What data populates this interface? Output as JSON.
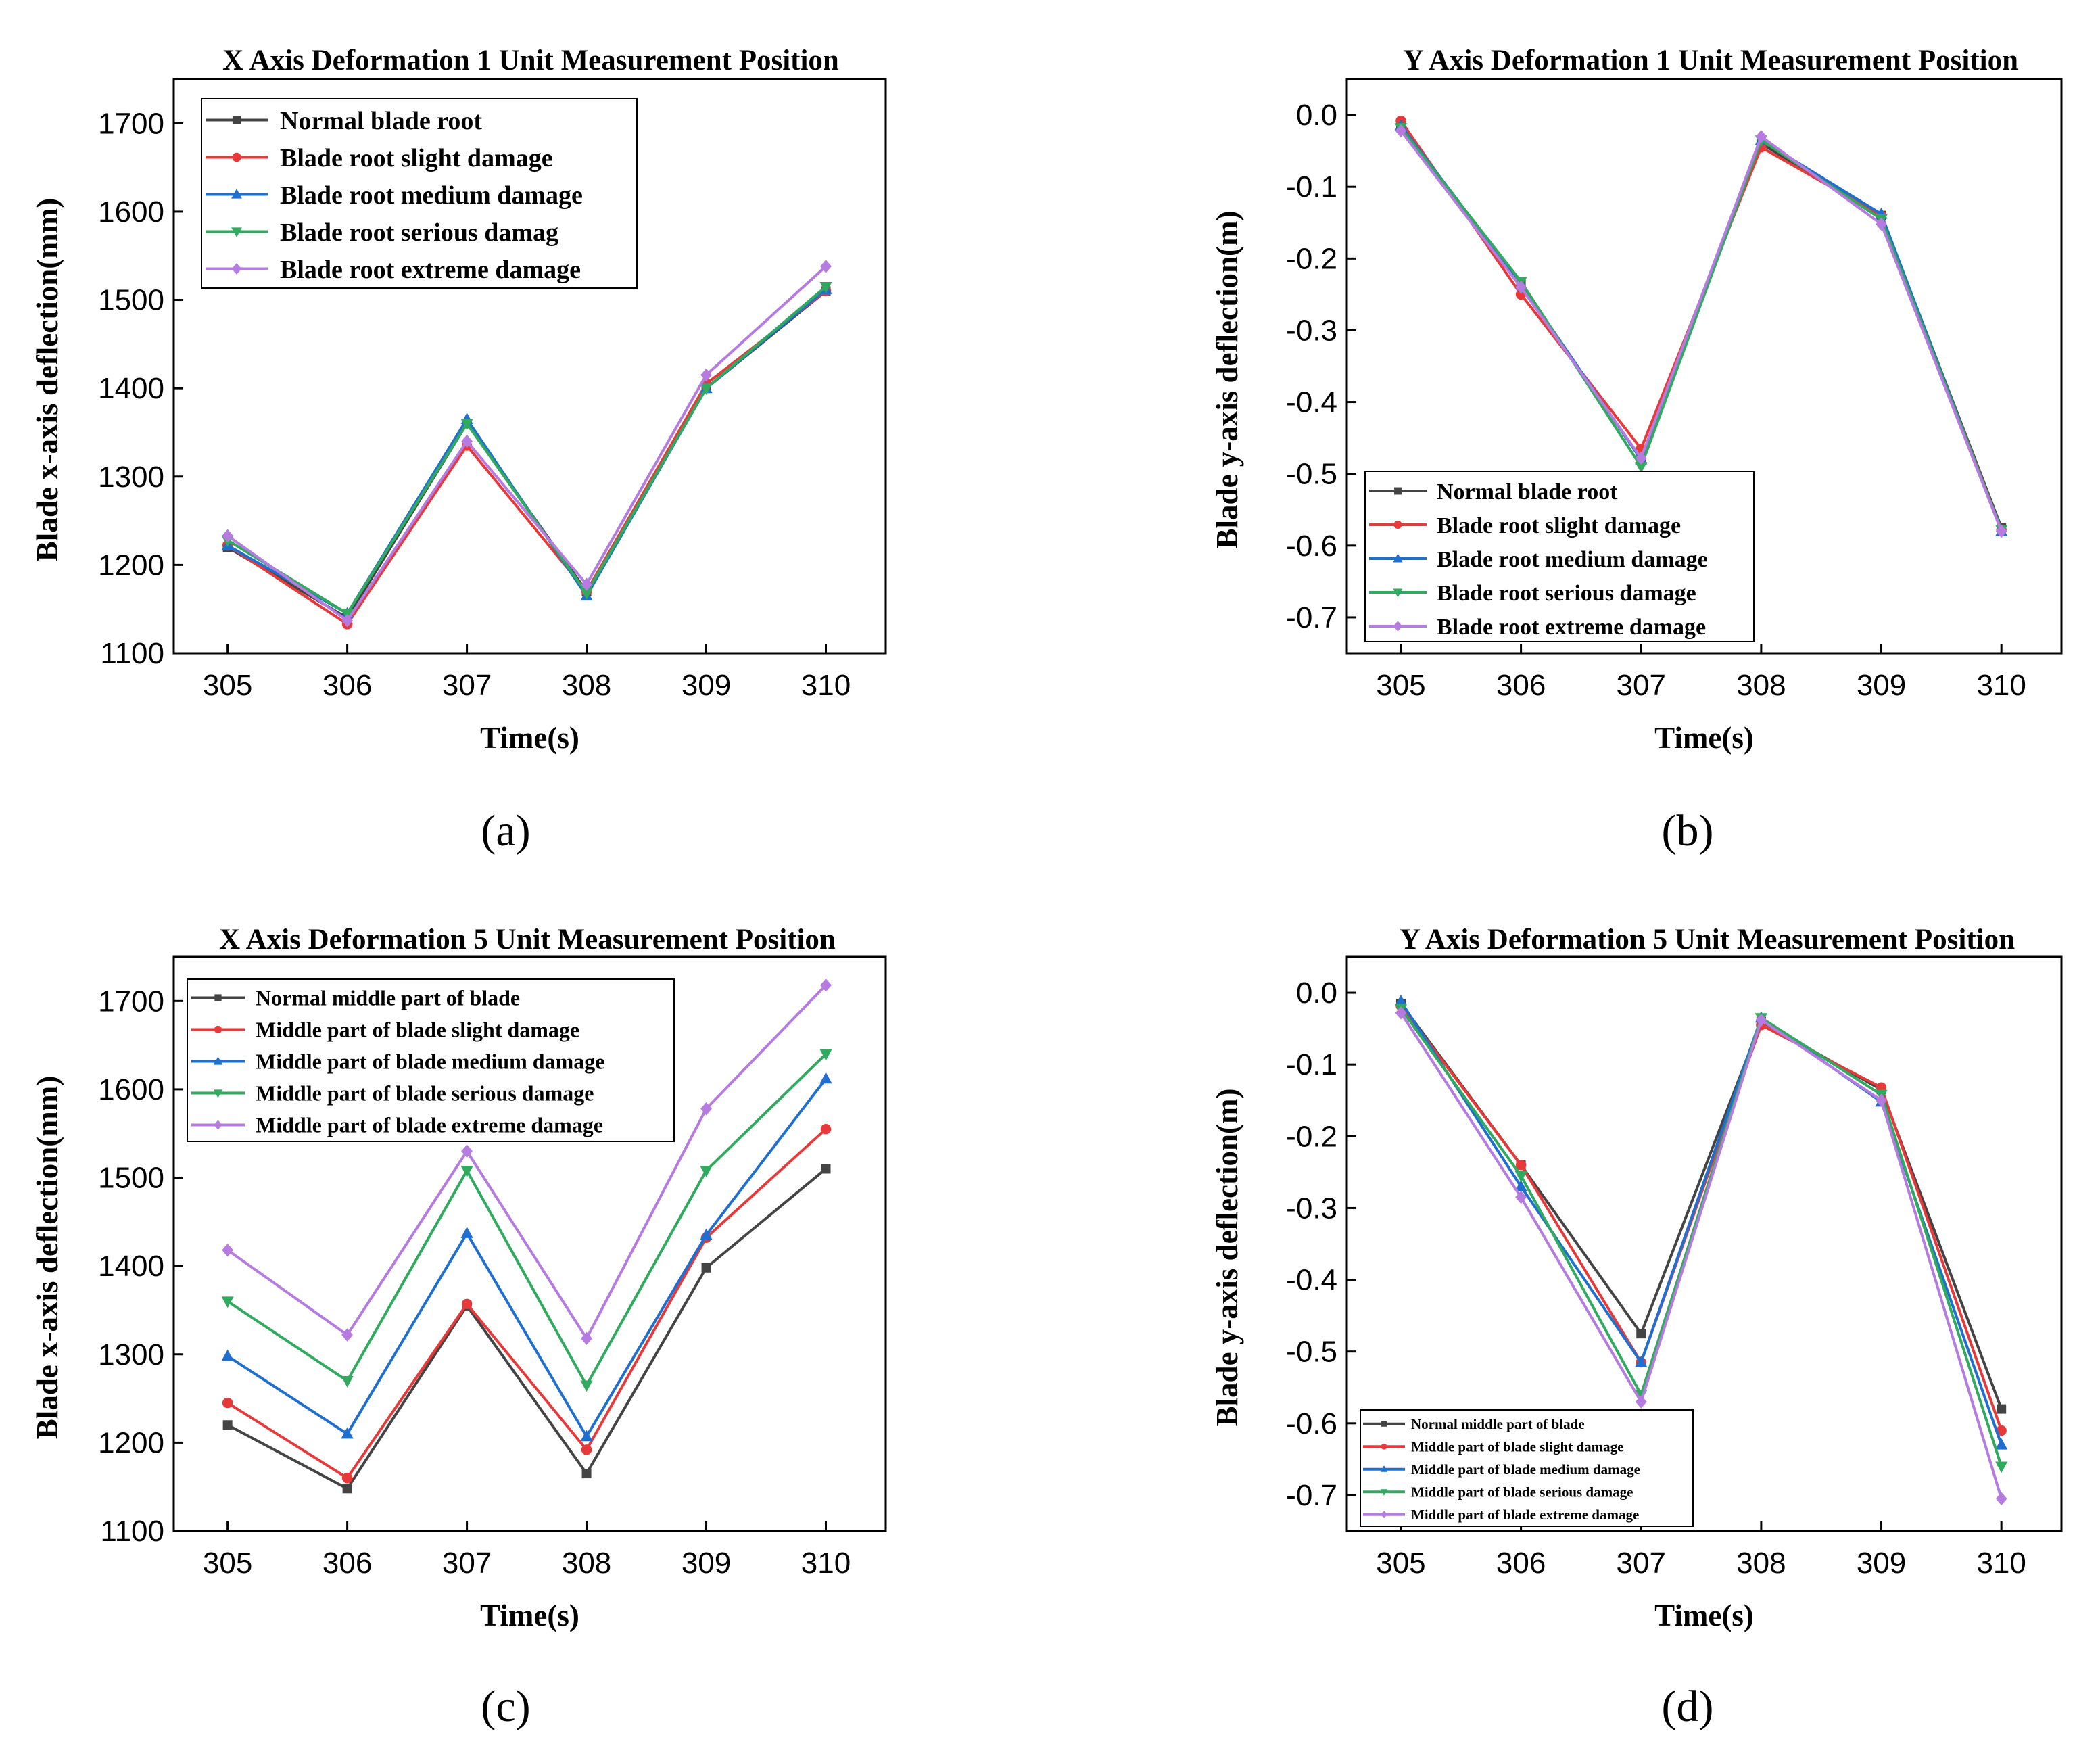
{
  "colors": {
    "normal": "#444444",
    "slight": "#e8393a",
    "medium": "#1f6fd1",
    "serious": "#2faa5e",
    "extreme": "#b57be0"
  },
  "chart_data": [
    {
      "panel": "(a)",
      "type": "line",
      "title": "X Axis Deformation 1 Unit Measurement Position",
      "xlabel": "Time(s)",
      "ylabel": "Blade x-axis deflection(mm)",
      "x": [
        305,
        306,
        307,
        308,
        309,
        310
      ],
      "x_ticks": [
        "305",
        "306",
        "307",
        "308",
        "309",
        "310"
      ],
      "xlim": [
        304.55,
        310.5
      ],
      "ylim": [
        1100,
        1750
      ],
      "y_ticks": [
        1100,
        1200,
        1300,
        1400,
        1500,
        1600,
        1700
      ],
      "y_tick_labels": [
        "1100",
        "1200",
        "1300",
        "1400",
        "1500",
        "1600",
        "1700"
      ],
      "legend_position": "top-left",
      "series": [
        {
          "name": "Normal blade root",
          "color_key": "normal",
          "marker": "square",
          "values": [
            1220,
            1140,
            1360,
            1170,
            1400,
            1510
          ]
        },
        {
          "name": "Blade root slight damage",
          "color_key": "slight",
          "marker": "circle",
          "values": [
            1222,
            1133,
            1335,
            1170,
            1405,
            1510
          ]
        },
        {
          "name": "Blade root medium damage",
          "color_key": "medium",
          "marker": "triangle-up",
          "values": [
            1222,
            1145,
            1365,
            1165,
            1400,
            1512
          ]
        },
        {
          "name": "Blade root serious damag",
          "color_key": "serious",
          "marker": "triangle-down",
          "values": [
            1228,
            1145,
            1360,
            1168,
            1400,
            1515
          ]
        },
        {
          "name": "Blade root extreme damage",
          "color_key": "extreme",
          "marker": "diamond",
          "values": [
            1233,
            1137,
            1340,
            1178,
            1415,
            1538
          ]
        }
      ]
    },
    {
      "panel": "(b)",
      "type": "line",
      "title": "Y Axis Deformation 1 Unit Measurement Position",
      "xlabel": "Time(s)",
      "ylabel": "Blade y-axis deflection(m)",
      "x": [
        305,
        306,
        307,
        308,
        309,
        310
      ],
      "x_ticks": [
        "305",
        "306",
        "307",
        "308",
        "309",
        "310"
      ],
      "xlim": [
        304.55,
        310.5
      ],
      "ylim": [
        -0.75,
        0.05
      ],
      "y_ticks": [
        0.0,
        -0.1,
        -0.2,
        -0.3,
        -0.4,
        -0.5,
        -0.6,
        -0.7
      ],
      "y_tick_labels": [
        "0.0",
        "-0.1",
        "-0.2",
        "-0.3",
        "-0.4",
        "-0.5",
        "-0.6",
        "-0.7"
      ],
      "legend_position": "bottom-left",
      "series": [
        {
          "name": "Normal blade root",
          "color_key": "normal",
          "marker": "square",
          "values": [
            -0.015,
            -0.235,
            -0.48,
            -0.04,
            -0.14,
            -0.575
          ]
        },
        {
          "name": "Blade root slight damage",
          "color_key": "slight",
          "marker": "circle",
          "values": [
            -0.008,
            -0.25,
            -0.465,
            -0.045,
            -0.14,
            -0.578
          ]
        },
        {
          "name": "Blade root medium damage",
          "color_key": "medium",
          "marker": "triangle-up",
          "values": [
            -0.015,
            -0.235,
            -0.48,
            -0.035,
            -0.138,
            -0.58
          ]
        },
        {
          "name": "Blade root serious damage",
          "color_key": "serious",
          "marker": "triangle-down",
          "values": [
            -0.018,
            -0.232,
            -0.49,
            -0.035,
            -0.145,
            -0.578
          ]
        },
        {
          "name": "Blade root extreme damage",
          "color_key": "extreme",
          "marker": "diamond",
          "values": [
            -0.022,
            -0.24,
            -0.478,
            -0.03,
            -0.152,
            -0.58
          ]
        }
      ]
    },
    {
      "panel": "(c)",
      "type": "line",
      "title": "X Axis Deformation 5 Unit Measurement Position",
      "xlabel": "Time(s)",
      "ylabel": "Blade x-axis deflection(mm)",
      "x": [
        305,
        306,
        307,
        308,
        309,
        310
      ],
      "x_ticks": [
        "305",
        "306",
        "307",
        "308",
        "309",
        "310"
      ],
      "xlim": [
        304.55,
        310.5
      ],
      "ylim": [
        1100,
        1750
      ],
      "y_ticks": [
        1100,
        1200,
        1300,
        1400,
        1500,
        1600,
        1700
      ],
      "y_tick_labels": [
        "1100",
        "1200",
        "1300",
        "1400",
        "1500",
        "1600",
        "1700"
      ],
      "legend_position": "top-left",
      "series": [
        {
          "name": "Normal  middle part of blade",
          "color_key": "normal",
          "marker": "square",
          "values": [
            1220,
            1148,
            1355,
            1165,
            1398,
            1510
          ]
        },
        {
          "name": "Middle part of blade slight damage",
          "color_key": "slight",
          "marker": "circle",
          "values": [
            1245,
            1160,
            1357,
            1192,
            1432,
            1555
          ]
        },
        {
          "name": "Middle part of blade medium damage",
          "color_key": "medium",
          "marker": "triangle-up",
          "values": [
            1298,
            1210,
            1437,
            1207,
            1435,
            1612
          ]
        },
        {
          "name": "Middle part of blade serious damage",
          "color_key": "serious",
          "marker": "triangle-down",
          "values": [
            1360,
            1270,
            1508,
            1265,
            1508,
            1640
          ]
        },
        {
          "name": "Middle part of blade extreme damage",
          "color_key": "extreme",
          "marker": "diamond",
          "values": [
            1418,
            1322,
            1530,
            1318,
            1578,
            1718
          ]
        }
      ]
    },
    {
      "panel": "(d)",
      "type": "line",
      "title": "Y Axis Deformation 5 Unit Measurement Position",
      "xlabel": "Time(s)",
      "ylabel": "Blade y-axis deflection(m)",
      "x": [
        305,
        306,
        307,
        308,
        309,
        310
      ],
      "x_ticks": [
        "305",
        "306",
        "307",
        "308",
        "309",
        "310"
      ],
      "xlim": [
        304.55,
        310.5
      ],
      "ylim": [
        -0.75,
        0.05
      ],
      "y_ticks": [
        0.0,
        -0.1,
        -0.2,
        -0.3,
        -0.4,
        -0.5,
        -0.6,
        -0.7
      ],
      "y_tick_labels": [
        "0.0",
        "-0.1",
        "-0.2",
        "-0.3",
        "-0.4",
        "-0.5",
        "-0.6",
        "-0.7"
      ],
      "legend_position": "bottom-left",
      "series": [
        {
          "name": "Normal middle part of blade",
          "color_key": "normal",
          "marker": "square",
          "values": [
            -0.015,
            -0.24,
            -0.475,
            -0.04,
            -0.135,
            -0.58
          ]
        },
        {
          "name": "Middle part of blade slight damage",
          "color_key": "slight",
          "marker": "circle",
          "values": [
            -0.018,
            -0.24,
            -0.515,
            -0.045,
            -0.132,
            -0.61
          ]
        },
        {
          "name": "Middle part of blade medium damage",
          "color_key": "medium",
          "marker": "triangle-up",
          "values": [
            -0.012,
            -0.27,
            -0.515,
            -0.035,
            -0.152,
            -0.63
          ]
        },
        {
          "name": "Middle part of blade serious damage",
          "color_key": "serious",
          "marker": "triangle-down",
          "values": [
            -0.022,
            -0.255,
            -0.56,
            -0.035,
            -0.142,
            -0.66
          ]
        },
        {
          "name": "Middle part of blade extreme damage",
          "color_key": "extreme",
          "marker": "diamond",
          "values": [
            -0.028,
            -0.285,
            -0.57,
            -0.038,
            -0.15,
            -0.705
          ]
        }
      ]
    }
  ]
}
